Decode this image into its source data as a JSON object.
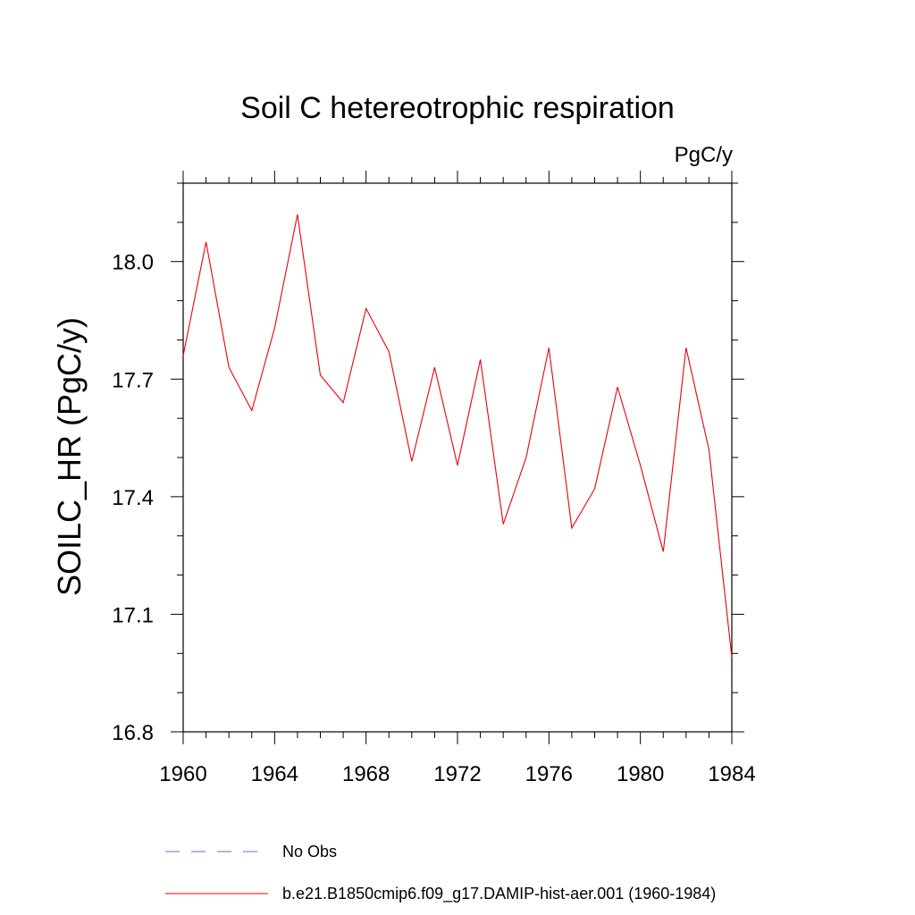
{
  "chart_data": {
    "type": "line",
    "title": "Soil C hetereotrophic respiration",
    "units_label": "PgC/y",
    "xlabel": "",
    "ylabel": "SOILC_HR  (PgC/y)",
    "xlim": [
      1960,
      1984
    ],
    "ylim": [
      16.8,
      18.2
    ],
    "x_ticks": [
      1960,
      1964,
      1968,
      1972,
      1976,
      1980,
      1984
    ],
    "y_ticks": [
      16.8,
      17.1,
      17.4,
      17.7,
      18.0
    ],
    "x_tick_labels": [
      "1960",
      "1964",
      "1968",
      "1972",
      "1976",
      "1980",
      "1984"
    ],
    "y_tick_labels": [
      "16.8",
      "17.1",
      "17.4",
      "17.7",
      "18.0"
    ],
    "grid": false,
    "legend_placement": "bottom",
    "series": [
      {
        "name": "b.e21.B1850cmip6.f09_g17.DAMIP-hist-aer.001 (1960-1984)",
        "color": "#e8000b",
        "style": "solid",
        "x": [
          1960,
          1961,
          1962,
          1963,
          1964,
          1965,
          1966,
          1967,
          1968,
          1969,
          1970,
          1971,
          1972,
          1973,
          1974,
          1975,
          1976,
          1977,
          1978,
          1979,
          1980,
          1981,
          1982,
          1983,
          1984
        ],
        "y": [
          17.76,
          18.05,
          17.73,
          17.62,
          17.83,
          18.12,
          17.71,
          17.64,
          17.88,
          17.77,
          17.49,
          17.73,
          17.48,
          17.75,
          17.33,
          17.5,
          17.78,
          17.32,
          17.42,
          17.68,
          17.48,
          17.26,
          17.78,
          17.52,
          16.99
        ]
      }
    ],
    "legend": [
      {
        "label": "No Obs",
        "color": "#6a6acd",
        "style": "dashed"
      },
      {
        "label": "b.e21.B1850cmip6.f09_g17.DAMIP-hist-aer.001 (1960-1984)",
        "color": "#e8000b",
        "style": "solid"
      }
    ]
  }
}
